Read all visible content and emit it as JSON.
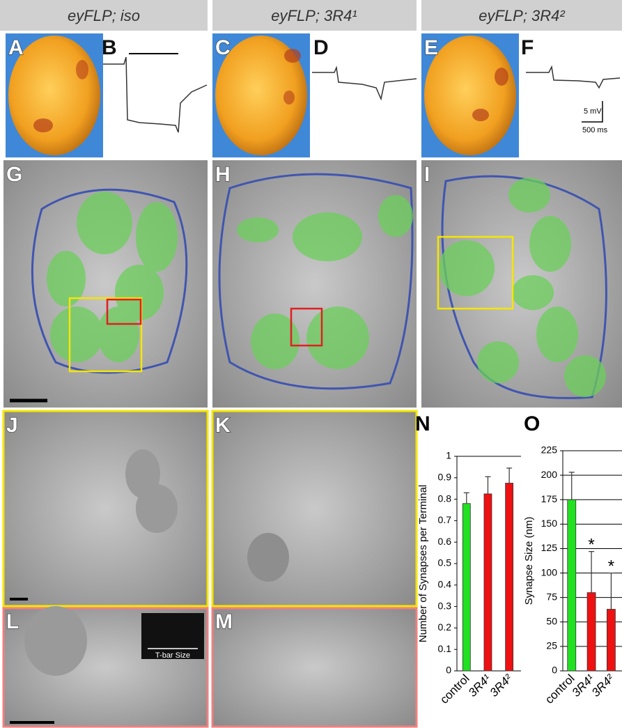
{
  "columns": [
    "eyFLP; iso",
    "eyFLP; 3R4¹",
    "eyFLP; 3R4²"
  ],
  "panels": [
    "A",
    "B",
    "C",
    "D",
    "E",
    "F",
    "G",
    "H",
    "I",
    "J",
    "K",
    "L",
    "M"
  ],
  "scale_bars": {
    "voltage": "5 mV",
    "time": "500 ms"
  },
  "inset_label": "T-bar Size",
  "chart_data": [
    {
      "type": "bar",
      "title": "N",
      "y_label": "Number of Synapses per Terminal",
      "categories": [
        "control",
        "3R4¹",
        "3R4²"
      ],
      "values": [
        0.78,
        0.825,
        0.875
      ],
      "errors": [
        0.05,
        0.08,
        0.07
      ],
      "colors": [
        "#22e022",
        "#ee1111",
        "#ee1111"
      ],
      "ylim": [
        0,
        1
      ],
      "yticks": [
        0,
        0.1,
        0.2,
        0.3,
        0.4,
        0.5,
        0.6,
        0.7,
        0.8,
        0.9,
        1
      ],
      "grid": false
    },
    {
      "type": "bar",
      "title": "O",
      "y_label": "Synapse Size (nm)",
      "categories": [
        "control",
        "3R4¹",
        "3R4²"
      ],
      "values": [
        175,
        80,
        63
      ],
      "errors": [
        28,
        42,
        37
      ],
      "colors": [
        "#22e022",
        "#ee1111",
        "#ee1111"
      ],
      "ylim": [
        0,
        225
      ],
      "yticks": [
        0,
        25,
        50,
        75,
        100,
        125,
        150,
        175,
        200,
        225
      ],
      "grid": true,
      "significant": [
        false,
        true,
        true
      ],
      "significance_label": "*"
    }
  ]
}
